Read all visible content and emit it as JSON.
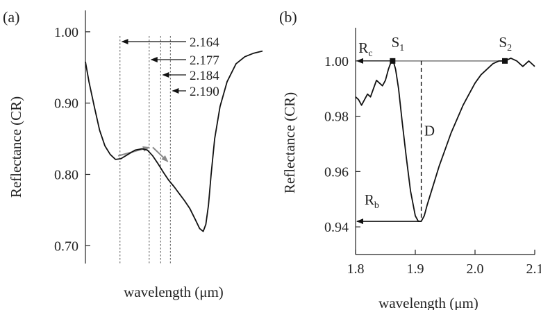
{
  "chart_data": [
    {
      "panel_label": "(a)",
      "type": "line",
      "title": "",
      "xlabel": "wavelength (μm)",
      "ylabel": "Reflectance (CR)",
      "ylim": [
        0.675,
        1.03
      ],
      "x_range": [
        0,
        1
      ],
      "x_ticks_shown": false,
      "y_ticks": [
        0.7,
        0.8,
        0.9,
        1.0
      ],
      "y_tick_labels": [
        "0.70",
        "0.80",
        "0.90",
        "1.00"
      ],
      "series": [
        {
          "x": [
            0.0,
            0.02,
            0.05,
            0.08,
            0.11,
            0.14,
            0.17,
            0.2,
            0.24,
            0.28,
            0.32,
            0.35,
            0.38,
            0.41,
            0.44,
            0.47,
            0.5,
            0.53,
            0.56,
            0.59,
            0.62,
            0.645,
            0.665,
            0.68,
            0.695,
            0.71,
            0.73,
            0.76,
            0.8,
            0.85,
            0.9,
            0.95,
            1.0
          ],
          "y": [
            0.958,
            0.93,
            0.895,
            0.862,
            0.84,
            0.828,
            0.821,
            0.822,
            0.828,
            0.834,
            0.836,
            0.834,
            0.826,
            0.815,
            0.803,
            0.792,
            0.783,
            0.773,
            0.763,
            0.752,
            0.737,
            0.724,
            0.72,
            0.73,
            0.757,
            0.8,
            0.85,
            0.895,
            0.93,
            0.955,
            0.965,
            0.97,
            0.973
          ]
        }
      ],
      "vlines": [
        {
          "x": 0.195,
          "label": "2.164"
        },
        {
          "x": 0.36,
          "label": "2.177"
        },
        {
          "x": 0.425,
          "label": "2.184"
        },
        {
          "x": 0.48,
          "label": "2.190"
        }
      ],
      "arrows": [
        {
          "from": [
            0.185,
            0.826
          ],
          "to": [
            0.36,
            0.838
          ]
        },
        {
          "from": [
            0.38,
            0.838
          ],
          "to": [
            0.465,
            0.818
          ]
        }
      ]
    },
    {
      "panel_label": "(b)",
      "type": "line",
      "title": "",
      "xlabel": "wavelength (μm)",
      "ylabel": "Reflectance (CR)",
      "xlim": [
        1.8,
        2.1
      ],
      "ylim": [
        0.93,
        1.012
      ],
      "x_ticks": [
        1.8,
        1.9,
        2.0,
        2.1
      ],
      "x_tick_labels": [
        "1.8",
        "1.9",
        "2.0",
        "2.1"
      ],
      "y_ticks": [
        0.94,
        0.96,
        0.98,
        1.0
      ],
      "y_tick_labels": [
        "0.94",
        "0.96",
        "0.98",
        "1.00"
      ],
      "series": [
        {
          "x": [
            1.8,
            1.805,
            1.81,
            1.815,
            1.82,
            1.825,
            1.83,
            1.835,
            1.84,
            1.845,
            1.85,
            1.855,
            1.86,
            1.863,
            1.867,
            1.872,
            1.878,
            1.885,
            1.892,
            1.9,
            1.905,
            1.91,
            1.915,
            1.92,
            1.93,
            1.94,
            1.95,
            1.96,
            1.97,
            1.98,
            1.99,
            2.0,
            2.01,
            2.02,
            2.03,
            2.04,
            2.05,
            2.06,
            2.07,
            2.08,
            2.09,
            2.1
          ],
          "y": [
            0.987,
            0.986,
            0.984,
            0.986,
            0.988,
            0.987,
            0.99,
            0.993,
            0.992,
            0.991,
            0.993,
            0.997,
            1.0,
            1.0,
            0.997,
            0.99,
            0.978,
            0.965,
            0.953,
            0.944,
            0.942,
            0.942,
            0.944,
            0.948,
            0.955,
            0.962,
            0.968,
            0.974,
            0.979,
            0.984,
            0.988,
            0.992,
            0.995,
            0.997,
            0.999,
            1.0,
            1.0,
            1.001,
            1.0,
            0.998,
            1.0,
            0.998
          ]
        }
      ],
      "annotations": [
        {
          "text": "R",
          "sub": "c",
          "x": 1.805,
          "y": 1.003
        },
        {
          "text": "S",
          "sub": "1",
          "x": 1.86,
          "y": 1.005
        },
        {
          "text": "S",
          "sub": "2",
          "x": 2.04,
          "y": 1.005
        },
        {
          "text": "D",
          "sub": "",
          "x": 1.915,
          "y": 0.973
        },
        {
          "text": "R",
          "sub": "b",
          "x": 1.815,
          "y": 0.948
        }
      ],
      "markers": [
        {
          "name": "S1",
          "x": 1.862,
          "y": 1.0
        },
        {
          "name": "S2",
          "x": 2.05,
          "y": 1.0
        }
      ],
      "baseline": {
        "x": [
          1.862,
          2.05
        ],
        "y": [
          1.0,
          1.0
        ]
      },
      "depth_line": {
        "x": 1.91,
        "y": [
          0.942,
          1.0
        ]
      },
      "rc_arrow": {
        "from": [
          1.862,
          1.0
        ],
        "to": [
          1.8,
          1.0
        ]
      },
      "rb_arrow": {
        "from": [
          1.91,
          0.942
        ],
        "to": [
          1.8,
          0.942
        ]
      }
    }
  ]
}
